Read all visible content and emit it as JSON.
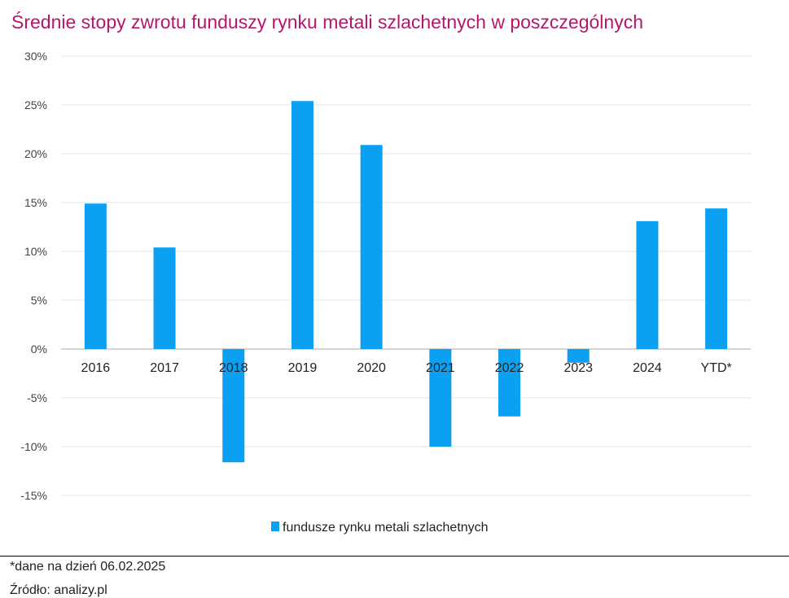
{
  "chart_data": {
    "type": "bar",
    "title": "Średnie stopy zwrotu funduszy rynku metali szlachetnych w poszczególnych",
    "categories": [
      "2016",
      "2017",
      "2018",
      "2019",
      "2020",
      "2021",
      "2022",
      "2023",
      "2024",
      "YTD*"
    ],
    "series": [
      {
        "name": "fundusze rynku metali szlachetnych",
        "values": [
          14.9,
          10.4,
          -11.6,
          25.4,
          20.9,
          -10.0,
          -6.9,
          -1.4,
          13.1,
          14.4
        ],
        "color": "#0ba0f2"
      }
    ],
    "yticks": [
      "30%",
      "25%",
      "20%",
      "15%",
      "10%",
      "5%",
      "0%",
      "-5%",
      "-10%",
      "-15%"
    ],
    "ylim": [
      -15,
      30
    ],
    "grid": true,
    "legend": "bottom-center"
  },
  "footer": {
    "note": "*dane na dzień 06.02.2025",
    "source": "Źródło: analizy.pl"
  }
}
